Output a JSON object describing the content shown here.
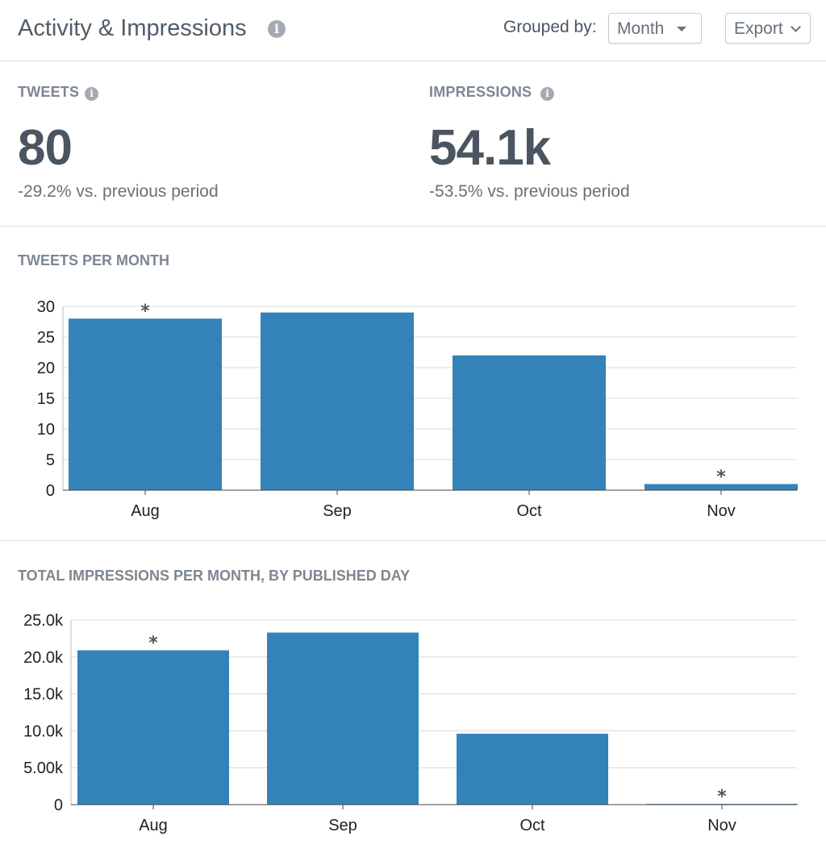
{
  "header": {
    "title": "Activity & Impressions",
    "grouped_by_label": "Grouped by:",
    "grouped_by_value": "Month",
    "export_label": "Export"
  },
  "stats": {
    "tweets": {
      "label": "TWEETS",
      "value": "80",
      "change": "-29.2% vs. previous period"
    },
    "impressions": {
      "label": "IMPRESSIONS",
      "value": "54.1k",
      "change": "-53.5% vs. previous period"
    }
  },
  "icons": {
    "info": "info-icon",
    "caret": "caret-down-icon",
    "chevron": "chevron-down-icon",
    "partial_marker": "asterisk"
  },
  "colors": {
    "bar": "#3482ba",
    "grid": "#d8d8d8",
    "text": "#4a5561"
  },
  "chart_data": [
    {
      "type": "bar",
      "title": "TWEETS PER MONTH",
      "categories": [
        "Aug",
        "Sep",
        "Oct",
        "Nov"
      ],
      "values": [
        28,
        29,
        22,
        1
      ],
      "ylim": [
        0,
        30
      ],
      "yticks": [
        0,
        5,
        10,
        15,
        20,
        25,
        30
      ],
      "ytick_labels": [
        "0",
        "5",
        "10",
        "15",
        "20",
        "25",
        "30"
      ],
      "marked": [
        "Aug",
        "Nov"
      ],
      "marker": "*",
      "grid": true,
      "color": "#3482ba"
    },
    {
      "type": "bar",
      "title": "TOTAL IMPRESSIONS PER MONTH, BY PUBLISHED DAY",
      "categories": [
        "Aug",
        "Sep",
        "Oct",
        "Nov"
      ],
      "values": [
        20900,
        23300,
        9600,
        100
      ],
      "ylim": [
        0,
        25000
      ],
      "yticks": [
        0,
        5000,
        10000,
        15000,
        20000,
        25000
      ],
      "ytick_labels": [
        "0",
        "5.00k",
        "10.0k",
        "15.0k",
        "20.0k",
        "25.0k"
      ],
      "marked": [
        "Aug",
        "Nov"
      ],
      "marker": "*",
      "grid": true,
      "color": "#3482ba"
    }
  ]
}
